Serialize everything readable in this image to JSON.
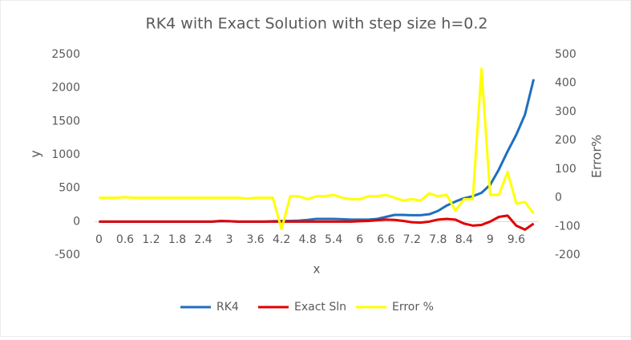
{
  "chart_data": {
    "type": "line",
    "title": "RK4 with Exact Solution with step size h=0.2",
    "x_label": "x",
    "y_label": "y",
    "y2_label": "Error%",
    "categories": [
      "0",
      null,
      null,
      "0.6",
      null,
      null,
      "1.2",
      null,
      null,
      "1.8",
      null,
      null,
      "2.4",
      null,
      null,
      "3",
      null,
      null,
      "3.6",
      null,
      null,
      "4.2",
      null,
      null,
      "4.8",
      null,
      null,
      "5.4",
      null,
      null,
      "6",
      null,
      null,
      "6.6",
      null,
      null,
      "7.2",
      null,
      null,
      "7.8",
      null,
      null,
      "8.4",
      null,
      null,
      "9",
      null,
      null,
      "9.6",
      null,
      null
    ],
    "series": [
      {
        "name": "RK4",
        "color": "#1f6fbf",
        "values": [
          0,
          0,
          0,
          0,
          0,
          0,
          0,
          0,
          0,
          0,
          0,
          0,
          0,
          0,
          5,
          5,
          0,
          0,
          0,
          0,
          5,
          10,
          10,
          15,
          25,
          40,
          40,
          40,
          35,
          30,
          30,
          30,
          40,
          70,
          100,
          100,
          95,
          95,
          110,
          160,
          240,
          300,
          350,
          380,
          430,
          550,
          780,
          1050,
          1300,
          1600,
          2130
        ]
      },
      {
        "name": "Exact Sln",
        "color": "#e00000",
        "values": [
          0,
          0,
          0,
          0,
          0,
          0,
          0,
          0,
          0,
          0,
          0,
          0,
          0,
          0,
          10,
          5,
          0,
          0,
          0,
          0,
          0,
          0,
          0,
          0,
          0,
          0,
          0,
          0,
          0,
          0,
          5,
          10,
          20,
          30,
          25,
          10,
          -10,
          -15,
          0,
          30,
          40,
          30,
          -30,
          -60,
          -50,
          0,
          70,
          90,
          -60,
          -120,
          -30
        ]
      },
      {
        "name": "Error %",
        "color": "#ffff00",
        "axis": "y2",
        "values": [
          0,
          0,
          0,
          2,
          0,
          0,
          0,
          0,
          0,
          0,
          0,
          0,
          0,
          0,
          0,
          0,
          0,
          -3,
          0,
          0,
          0,
          -110,
          5,
          5,
          -5,
          5,
          5,
          10,
          0,
          -5,
          -5,
          5,
          5,
          10,
          0,
          -10,
          -5,
          -10,
          15,
          5,
          10,
          -45,
          -5,
          -5,
          450,
          10,
          10,
          90,
          -20,
          -15,
          -55
        ]
      }
    ],
    "ylim": [
      -500,
      2500
    ],
    "yticks": [
      -500,
      0,
      500,
      1000,
      1500,
      2000,
      2500
    ],
    "y2lim": [
      -200,
      500
    ],
    "y2ticks": [
      -200,
      -100,
      0,
      100,
      200,
      300,
      400,
      500
    ],
    "grid": false,
    "legend": "bottom"
  }
}
